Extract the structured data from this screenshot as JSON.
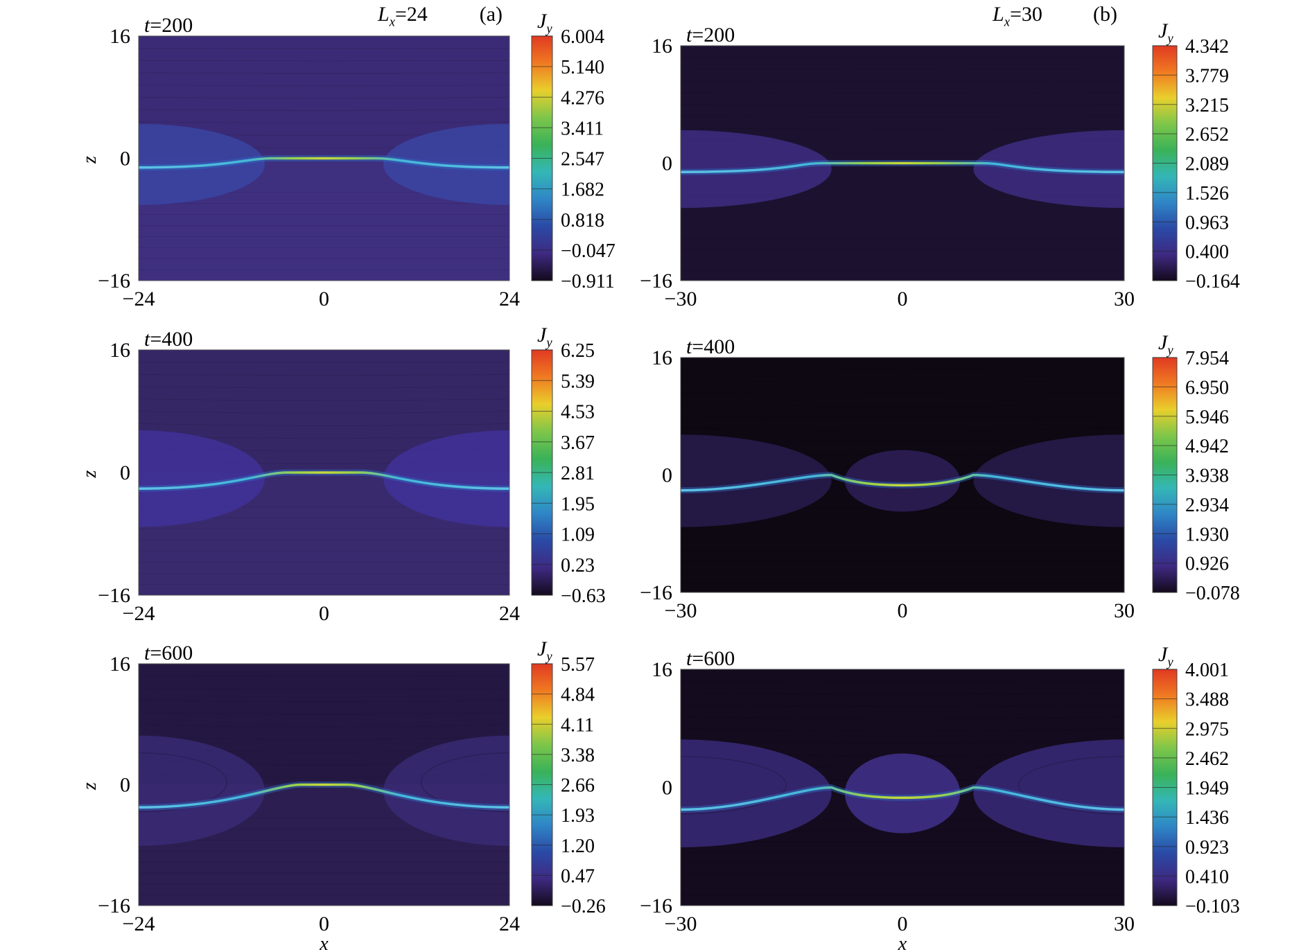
{
  "chart_data": [
    {
      "type": "heatmap",
      "column": "a",
      "row": 0,
      "time_label": "t=200",
      "column_label": "Lx=24",
      "panel_letter": "(a)",
      "xlim": [
        -24,
        24
      ],
      "ylim": [
        -16,
        16
      ],
      "x_ticks": [
        "−24",
        "0",
        "24"
      ],
      "y_ticks": [
        "16",
        "0",
        "−16"
      ],
      "ylabel": "z",
      "xlabel": "",
      "colorbar_label": "Jy",
      "colorbar_ticks": [
        "6.004",
        "5.140",
        "4.276",
        "3.411",
        "2.547",
        "1.682",
        "0.818",
        "−0.047",
        "−0.911"
      ],
      "background_color": "#3f2f7f",
      "upper_region_color": "#3b2b76",
      "lobe_color": "#3a4aa8"
    },
    {
      "type": "heatmap",
      "column": "b",
      "row": 0,
      "time_label": "t=200",
      "column_label": "Lx=30",
      "panel_letter": "(b)",
      "xlim": [
        -30,
        30
      ],
      "ylim": [
        -16,
        16
      ],
      "x_ticks": [
        "−30",
        "0",
        "30"
      ],
      "y_ticks": [
        "16",
        "0",
        "−16"
      ],
      "ylabel": "",
      "xlabel": "",
      "colorbar_label": "Jy",
      "colorbar_ticks": [
        "4.342",
        "3.779",
        "3.215",
        "2.652",
        "2.089",
        "1.526",
        "0.963",
        "0.400",
        "−0.164"
      ],
      "background_color": "#1c1230",
      "upper_region_color": "#1c1230",
      "lobe_color": "#41308c"
    },
    {
      "type": "heatmap",
      "column": "a",
      "row": 1,
      "time_label": "t=400",
      "column_label": "",
      "panel_letter": "",
      "xlim": [
        -24,
        24
      ],
      "ylim": [
        -16,
        16
      ],
      "x_ticks": [
        "−24",
        "0",
        "24"
      ],
      "y_ticks": [
        "16",
        "0",
        "−16"
      ],
      "ylabel": "z",
      "xlabel": "",
      "colorbar_label": "Jy",
      "colorbar_ticks": [
        "6.25",
        "5.39",
        "4.53",
        "3.67",
        "2.81",
        "1.95",
        "1.09",
        "0.23",
        "−0.63"
      ],
      "background_color": "#392a6e",
      "upper_region_color": "#352766",
      "lobe_color": "#4233a0"
    },
    {
      "type": "heatmap",
      "column": "b",
      "row": 1,
      "time_label": "t=400",
      "column_label": "",
      "panel_letter": "",
      "xlim": [
        -30,
        30
      ],
      "ylim": [
        -16,
        16
      ],
      "x_ticks": [
        "−30",
        "0",
        "30"
      ],
      "y_ticks": [
        "16",
        "0",
        "−16"
      ],
      "ylabel": "",
      "xlabel": "",
      "colorbar_label": "Jy",
      "colorbar_ticks": [
        "7.954",
        "6.950",
        "5.946",
        "4.942",
        "3.938",
        "2.934",
        "1.930",
        "0.926",
        "−0.078"
      ],
      "background_color": "#0d0812",
      "upper_region_color": "#0d0812",
      "lobe_color": "#2c1e55"
    },
    {
      "type": "heatmap",
      "column": "a",
      "row": 2,
      "time_label": "t=600",
      "column_label": "",
      "panel_letter": "",
      "xlim": [
        -24,
        24
      ],
      "ylim": [
        -16,
        16
      ],
      "x_ticks": [
        "−24",
        "0",
        "24"
      ],
      "y_ticks": [
        "16",
        "0",
        "−16"
      ],
      "ylabel": "z",
      "xlabel": "x",
      "colorbar_label": "Jy",
      "colorbar_ticks": [
        "5.57",
        "4.84",
        "4.11",
        "3.38",
        "2.66",
        "1.93",
        "1.20",
        "0.47",
        "−0.26"
      ],
      "background_color": "#2c1e50",
      "upper_region_color": "#241843",
      "lobe_color": "#3b2c7a"
    },
    {
      "type": "heatmap",
      "column": "b",
      "row": 2,
      "time_label": "t=600",
      "column_label": "",
      "panel_letter": "",
      "xlim": [
        -30,
        30
      ],
      "ylim": [
        -16,
        16
      ],
      "x_ticks": [
        "−30",
        "0",
        "30"
      ],
      "y_ticks": [
        "16",
        "0",
        "−16"
      ],
      "ylabel": "",
      "xlabel": "x",
      "colorbar_label": "Jy",
      "colorbar_ticks": [
        "4.001",
        "3.488",
        "2.975",
        "2.462",
        "1.949",
        "1.436",
        "0.923",
        "0.410",
        "−0.103"
      ],
      "background_color": "#140b1e",
      "upper_region_color": "#140b1e",
      "lobe_color": "#3e2f86"
    }
  ],
  "colormap": [
    "#e03a22",
    "#f07a22",
    "#e9cf2c",
    "#7ec64a",
    "#3ab258",
    "#34b7b6",
    "#2f86c6",
    "#2a4aa6",
    "#3e2a82",
    "#140a1c"
  ]
}
